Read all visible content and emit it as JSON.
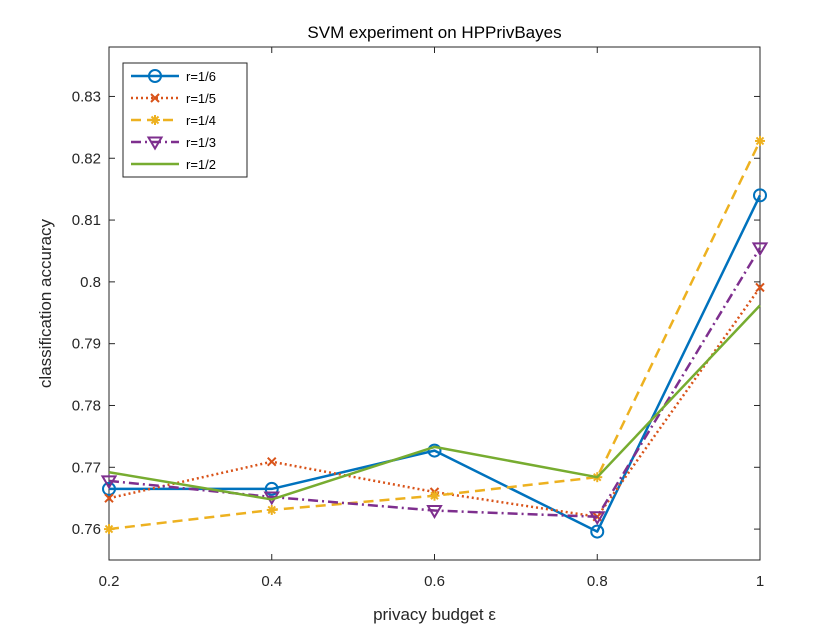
{
  "chart_data": {
    "type": "line",
    "title": "SVM experiment on HPPrivBayes",
    "xlabel": "privacy budget ε",
    "ylabel": "classification accuracy",
    "x": [
      0.2,
      0.4,
      0.6,
      0.8,
      1
    ],
    "xlim": [
      0.2,
      1
    ],
    "ylim": [
      0.755,
      0.838
    ],
    "xticks": [
      0.2,
      0.4,
      0.6,
      0.8,
      1
    ],
    "xtick_labels": [
      "0.2",
      "0.4",
      "0.6",
      "0.8",
      "1"
    ],
    "yticks": [
      0.76,
      0.77,
      0.78,
      0.79,
      0.8,
      0.81,
      0.82,
      0.83
    ],
    "ytick_labels": [
      "0.76",
      "0.77",
      "0.78",
      "0.79",
      "0.8",
      "0.81",
      "0.82",
      "0.83"
    ],
    "grid": false,
    "legend_position": "top-left",
    "series": [
      {
        "name": "r=1/6",
        "values": [
          0.7665,
          0.7665,
          0.7727,
          0.7596,
          0.814
        ],
        "color": "#0072BD",
        "marker": "circle",
        "dash": "solid"
      },
      {
        "name": "r=1/5",
        "values": [
          0.765,
          0.7709,
          0.766,
          0.762,
          0.7991
        ],
        "color": "#D95319",
        "marker": "x",
        "dash": "dotted"
      },
      {
        "name": "r=1/4",
        "values": [
          0.76,
          0.7631,
          0.7654,
          0.7684,
          0.8228
        ],
        "color": "#EDB120",
        "marker": "asterisk",
        "dash": "dashed"
      },
      {
        "name": "r=1/3",
        "values": [
          0.7678,
          0.7652,
          0.763,
          0.762,
          0.8055
        ],
        "color": "#7E2F8E",
        "marker": "triangle-down",
        "dash": "dashdot"
      },
      {
        "name": "r=1/2",
        "values": [
          0.7692,
          0.7648,
          0.7733,
          0.7684,
          0.7962
        ],
        "color": "#77AC30",
        "marker": "none",
        "dash": "solid"
      }
    ]
  }
}
